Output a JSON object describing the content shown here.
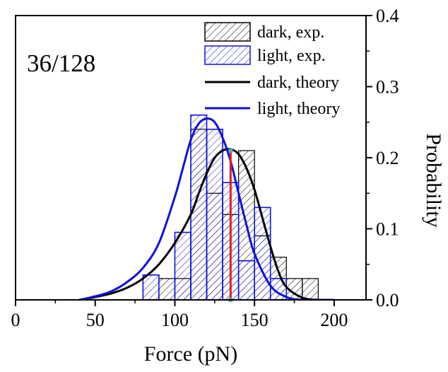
{
  "chart_data": {
    "type": "bar",
    "annotation": "36/128",
    "xlabel": "Force (pN)",
    "ylabel": "Probability",
    "xlim": [
      0,
      220
    ],
    "ylim": [
      0,
      0.4
    ],
    "x_ticks": [
      0,
      50,
      100,
      150,
      200
    ],
    "y_ticks": [
      0.0,
      0.1,
      0.2,
      0.3,
      0.4
    ],
    "y_tick_labels": [
      "0.0",
      "0.1",
      "0.2",
      "0.3",
      "0.4"
    ],
    "y_axis_side": "right",
    "legend": {
      "position": "top-right",
      "entries": [
        {
          "label": "dark, exp.",
          "kind": "bar",
          "color": "#000000"
        },
        {
          "label": "light, exp.",
          "kind": "bar",
          "color": "#1010dd"
        },
        {
          "label": "dark, theory",
          "kind": "line",
          "color": "#000000"
        },
        {
          "label": "light, theory",
          "kind": "line",
          "color": "#1010dd"
        }
      ]
    },
    "series": [
      {
        "name": "dark, exp.",
        "kind": "histogram",
        "color": "#000000",
        "bins": [
          {
            "x0": 90,
            "x1": 100,
            "y": 0.03
          },
          {
            "x0": 100,
            "x1": 110,
            "y": 0.03
          },
          {
            "x0": 110,
            "x1": 120,
            "y": 0.24
          },
          {
            "x0": 120,
            "x1": 130,
            "y": 0.15
          },
          {
            "x0": 130,
            "x1": 140,
            "y": 0.12
          },
          {
            "x0": 140,
            "x1": 150,
            "y": 0.21
          },
          {
            "x0": 150,
            "x1": 160,
            "y": 0.09
          },
          {
            "x0": 160,
            "x1": 170,
            "y": 0.06
          },
          {
            "x0": 170,
            "x1": 180,
            "y": 0.03
          },
          {
            "x0": 180,
            "x1": 190,
            "y": 0.03
          }
        ]
      },
      {
        "name": "light, exp.",
        "kind": "histogram",
        "color": "#1010dd",
        "bins": [
          {
            "x0": 80,
            "x1": 90,
            "y": 0.035
          },
          {
            "x0": 100,
            "x1": 110,
            "y": 0.095
          },
          {
            "x0": 110,
            "x1": 120,
            "y": 0.26
          },
          {
            "x0": 120,
            "x1": 130,
            "y": 0.24
          },
          {
            "x0": 130,
            "x1": 140,
            "y": 0.165
          },
          {
            "x0": 140,
            "x1": 150,
            "y": 0.055
          },
          {
            "x0": 150,
            "x1": 160,
            "y": 0.13
          },
          {
            "x0": 160,
            "x1": 170,
            "y": 0.03
          }
        ]
      },
      {
        "name": "dark, theory",
        "kind": "line",
        "color": "#000000",
        "x": [
          40,
          50,
          60,
          70,
          80,
          90,
          100,
          110,
          115,
          120,
          125,
          130,
          135,
          140,
          145,
          150,
          155,
          160,
          165,
          170,
          180,
          190,
          200
        ],
        "y": [
          0.0,
          0.004,
          0.009,
          0.017,
          0.03,
          0.05,
          0.08,
          0.12,
          0.15,
          0.178,
          0.2,
          0.21,
          0.212,
          0.205,
          0.185,
          0.155,
          0.115,
          0.075,
          0.04,
          0.018,
          0.003,
          0.0,
          0.0
        ]
      },
      {
        "name": "light, theory",
        "kind": "line",
        "color": "#1010dd",
        "x": [
          40,
          50,
          60,
          70,
          80,
          90,
          100,
          105,
          110,
          115,
          120,
          125,
          130,
          135,
          140,
          145,
          150,
          160,
          170,
          180,
          190,
          200
        ],
        "y": [
          0.0,
          0.005,
          0.012,
          0.025,
          0.045,
          0.08,
          0.145,
          0.185,
          0.225,
          0.248,
          0.255,
          0.25,
          0.228,
          0.195,
          0.15,
          0.105,
          0.065,
          0.02,
          0.004,
          0.0,
          0.0,
          0.0
        ]
      }
    ],
    "marker_line": {
      "x": 135,
      "y": 0.21,
      "color": "#e02020",
      "end_color": "#5fa8a8"
    }
  }
}
